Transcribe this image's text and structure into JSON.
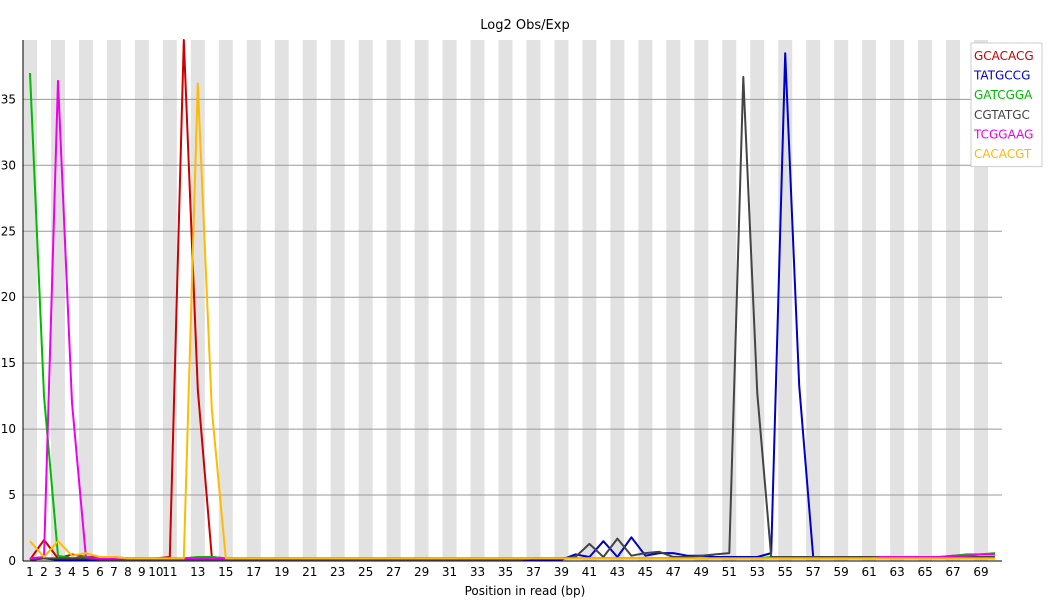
{
  "chart_data": {
    "type": "line",
    "title": "Log2 Obs/Exp",
    "xlabel": "Position in read (bp)",
    "ylabel": "",
    "ylim": [
      0,
      39.5
    ],
    "yticks": [
      0,
      5,
      10,
      15,
      20,
      25,
      30,
      35
    ],
    "x_tick_labels": [
      "1",
      "2",
      "3",
      "4",
      "5",
      "6",
      "7",
      "8",
      "9",
      "10",
      "11",
      "13",
      "15",
      "17",
      "19",
      "21",
      "23",
      "25",
      "27",
      "29",
      "31",
      "33",
      "35",
      "37",
      "39",
      "41",
      "43",
      "45",
      "47",
      "49",
      "51",
      "53",
      "55",
      "57",
      "59",
      "61",
      "63",
      "65",
      "67",
      "69"
    ],
    "grid": "horizontal",
    "legend_position": "top-right",
    "series": [
      {
        "name": "GCACACG",
        "color": "#cc0000",
        "values": [
          0.1,
          1.6,
          0.2,
          0.5,
          0.3,
          0.3,
          0.3,
          0.2,
          0.2,
          0.2,
          0.3,
          39.5,
          13,
          0.3,
          0.2,
          0.2,
          0.2,
          0.2,
          0.2,
          0.2,
          0.2,
          0.2,
          0.2,
          0.2,
          0.2,
          0.2,
          0.2,
          0.2,
          0.2,
          0.2,
          0.2,
          0.2,
          0.2,
          0.2,
          0.2,
          0.2,
          0.2,
          0.2,
          0.2,
          0.2,
          0.2,
          0.2,
          0.2,
          0.2,
          0.2,
          0.2,
          0.2,
          0.2,
          0.2,
          0.2,
          0.2,
          0.2,
          0.2,
          0.2,
          0.2,
          0.2,
          0.2,
          0.2,
          0.2,
          0.2,
          0.2,
          0.2,
          0.2,
          0.2,
          0.2,
          0.2,
          0.2,
          0.2,
          0.2,
          0.2
        ]
      },
      {
        "name": "TATGCCG",
        "color": "#0000cc",
        "values": [
          0.1,
          0.2,
          0.1,
          0.1,
          0.1,
          0.1,
          0.1,
          0.1,
          0.1,
          0.1,
          0.1,
          0.1,
          0.1,
          0.1,
          0.1,
          0.1,
          0.1,
          0.1,
          0.1,
          0.1,
          0.1,
          0.1,
          0.1,
          0.1,
          0.1,
          0.1,
          0.1,
          0.1,
          0.1,
          0.1,
          0.1,
          0.1,
          0.1,
          0.1,
          0.1,
          0.1,
          0.1,
          0.1,
          0.1,
          0.5,
          0.3,
          1.5,
          0.3,
          1.8,
          0.4,
          0.6,
          0.6,
          0.4,
          0.4,
          0.3,
          0.3,
          0.3,
          0.3,
          0.6,
          38.5,
          13.3,
          0.3,
          0.3,
          0.3,
          0.3,
          0.3,
          0.3,
          0.3,
          0.3,
          0.3,
          0.3,
          0.3,
          0.3,
          0.3,
          0.3
        ]
      },
      {
        "name": "GATCGGA",
        "color": "#00bb00",
        "values": [
          37,
          12.5,
          0.4,
          0.2,
          0.3,
          0.2,
          0.2,
          0.2,
          0.2,
          0.2,
          0.2,
          0.2,
          0.3,
          0.3,
          0.2,
          0.2,
          0.2,
          0.2,
          0.2,
          0.2,
          0.2,
          0.2,
          0.2,
          0.2,
          0.2,
          0.2,
          0.2,
          0.2,
          0.2,
          0.2,
          0.2,
          0.2,
          0.2,
          0.2,
          0.2,
          0.2,
          0.2,
          0.2,
          0.2,
          0.2,
          0.2,
          0.2,
          0.2,
          0.2,
          0.2,
          0.2,
          0.2,
          0.2,
          0.2,
          0.2,
          0.2,
          0.2,
          0.2,
          0.3,
          0.3,
          0.3,
          0.3,
          0.3,
          0.3,
          0.3,
          0.3,
          0.3,
          0.3,
          0.3,
          0.3,
          0.3,
          0.4,
          0.5,
          0.5,
          0.6
        ]
      },
      {
        "name": "CGTATGC",
        "color": "#444444",
        "values": [
          0.1,
          0.2,
          0.2,
          0.2,
          0.2,
          0.1,
          0.1,
          0.1,
          0.1,
          0.1,
          0.1,
          0.1,
          0.1,
          0.1,
          0.1,
          0.1,
          0.1,
          0.1,
          0.1,
          0.1,
          0.1,
          0.1,
          0.1,
          0.1,
          0.1,
          0.1,
          0.1,
          0.1,
          0.1,
          0.1,
          0.1,
          0.1,
          0.1,
          0.1,
          0.1,
          0.1,
          0.2,
          0.2,
          0.2,
          0.3,
          1.3,
          0.3,
          1.7,
          0.4,
          0.6,
          0.7,
          0.3,
          0.3,
          0.4,
          0.5,
          0.6,
          36.7,
          12.7,
          0.3,
          0.3,
          0.3,
          0.3,
          0.3,
          0.3,
          0.3,
          0.3,
          0.3,
          0.3,
          0.3,
          0.3,
          0.3,
          0.3,
          0.3,
          0.3,
          0.3
        ]
      },
      {
        "name": "TCGGAAG",
        "color": "#ee00ee",
        "values": [
          0.2,
          0.3,
          36.4,
          12,
          0.3,
          0.2,
          0.2,
          0.2,
          0.2,
          0.2,
          0.2,
          0.2,
          0.2,
          0.2,
          0.2,
          0.2,
          0.2,
          0.2,
          0.2,
          0.2,
          0.2,
          0.2,
          0.2,
          0.2,
          0.2,
          0.2,
          0.2,
          0.2,
          0.2,
          0.2,
          0.2,
          0.2,
          0.2,
          0.2,
          0.2,
          0.2,
          0.2,
          0.2,
          0.2,
          0.2,
          0.2,
          0.2,
          0.2,
          0.2,
          0.2,
          0.2,
          0.2,
          0.2,
          0.2,
          0.2,
          0.2,
          0.2,
          0.2,
          0.2,
          0.2,
          0.2,
          0.2,
          0.2,
          0.2,
          0.2,
          0.2,
          0.3,
          0.3,
          0.3,
          0.3,
          0.3,
          0.4,
          0.4,
          0.5,
          0.5
        ]
      },
      {
        "name": "CACACGT",
        "color": "#ffbb00",
        "values": [
          1.5,
          0.3,
          1.5,
          0.4,
          0.6,
          0.3,
          0.3,
          0.2,
          0.2,
          0.2,
          0.2,
          0.2,
          36.2,
          11.5,
          0.2,
          0.2,
          0.2,
          0.2,
          0.2,
          0.2,
          0.2,
          0.2,
          0.2,
          0.2,
          0.2,
          0.2,
          0.2,
          0.2,
          0.2,
          0.2,
          0.2,
          0.2,
          0.2,
          0.2,
          0.2,
          0.2,
          0.2,
          0.2,
          0.2,
          0.2,
          0.2,
          0.2,
          0.2,
          0.2,
          0.2,
          0.2,
          0.2,
          0.2,
          0.2,
          0.2,
          0.2,
          0.2,
          0.2,
          0.2,
          0.2,
          0.2,
          0.2,
          0.2,
          0.2,
          0.2,
          0.2,
          0.2,
          0.2,
          0.2,
          0.2,
          0.2,
          0.2,
          0.2,
          0.2,
          0.2
        ]
      }
    ]
  }
}
